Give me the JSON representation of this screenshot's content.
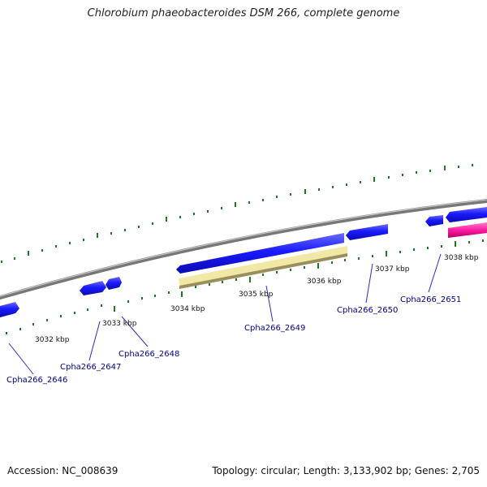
{
  "title": "Chlorobium phaeobacteroides DSM 266, complete genome",
  "footer": {
    "accession": "Accession: NC_008639",
    "summary": "Topology: circular; Length: 3,133,902 bp; Genes: 2,705"
  },
  "colors": {
    "background": "#ffffff",
    "backbone": "#8c8c8c",
    "gene_forward": "#1a1aff",
    "gene_reverse": "#1a1aff",
    "highlight_gene": "#f2e8a6",
    "pink_gene": "#ff1aa0",
    "tick": "#1e7a1e",
    "label": "#00008b"
  },
  "ticks": [
    "3032 kbp",
    "3033 kbp",
    "3034 kbp",
    "3035 kbp",
    "3036 kbp",
    "3037 kbp",
    "3038 kbp"
  ],
  "gene_labels": [
    "Cpha266_2646",
    "Cpha266_2647",
    "Cpha266_2648",
    "Cpha266_2649",
    "Cpha266_2650",
    "Cpha266_2651"
  ]
}
